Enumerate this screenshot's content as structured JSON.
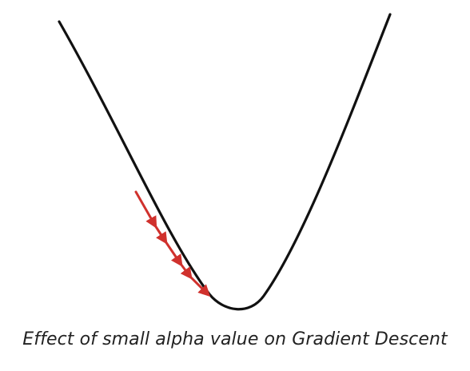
{
  "caption": "Effect of small alpha value on Gradient Descent",
  "colors": {
    "curve": "#111111",
    "steps": "#d0312d",
    "caption": "#222222",
    "background": "#ffffff"
  },
  "diagram": {
    "curve": "loss-curve",
    "step_count": 5,
    "marker": "arrowhead"
  }
}
